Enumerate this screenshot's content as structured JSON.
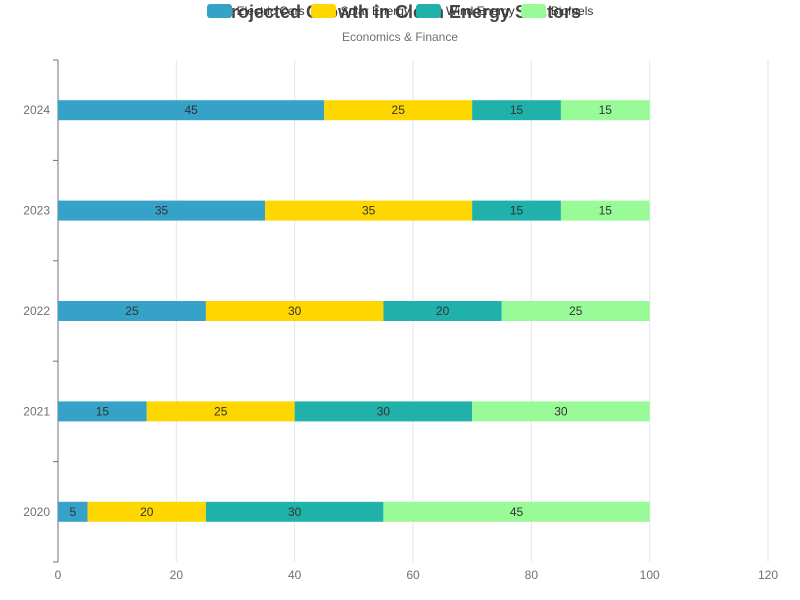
{
  "chart_data": {
    "type": "bar",
    "orientation": "horizontal",
    "stacked": true,
    "title": "Projected Growth in Clean Energy Sectors",
    "subtitle": "Economics & Finance",
    "categories": [
      "2020",
      "2021",
      "2022",
      "2023",
      "2024"
    ],
    "series": [
      {
        "name": "Electric Cars",
        "color": "#36a2c8",
        "values": [
          5,
          15,
          25,
          35,
          45
        ]
      },
      {
        "name": "Solar Energy",
        "color": "#ffd700",
        "values": [
          20,
          25,
          30,
          35,
          25
        ]
      },
      {
        "name": "Wind Energy",
        "color": "#20b2aa",
        "values": [
          30,
          30,
          20,
          15,
          15
        ]
      },
      {
        "name": "Biofuels",
        "color": "#98fb98",
        "values": [
          45,
          30,
          25,
          15,
          15
        ]
      }
    ],
    "xlim": [
      0,
      120
    ],
    "xticks": [
      0,
      20,
      40,
      60,
      80,
      100,
      120
    ],
    "grid": true,
    "legend_position": "top-center"
  }
}
